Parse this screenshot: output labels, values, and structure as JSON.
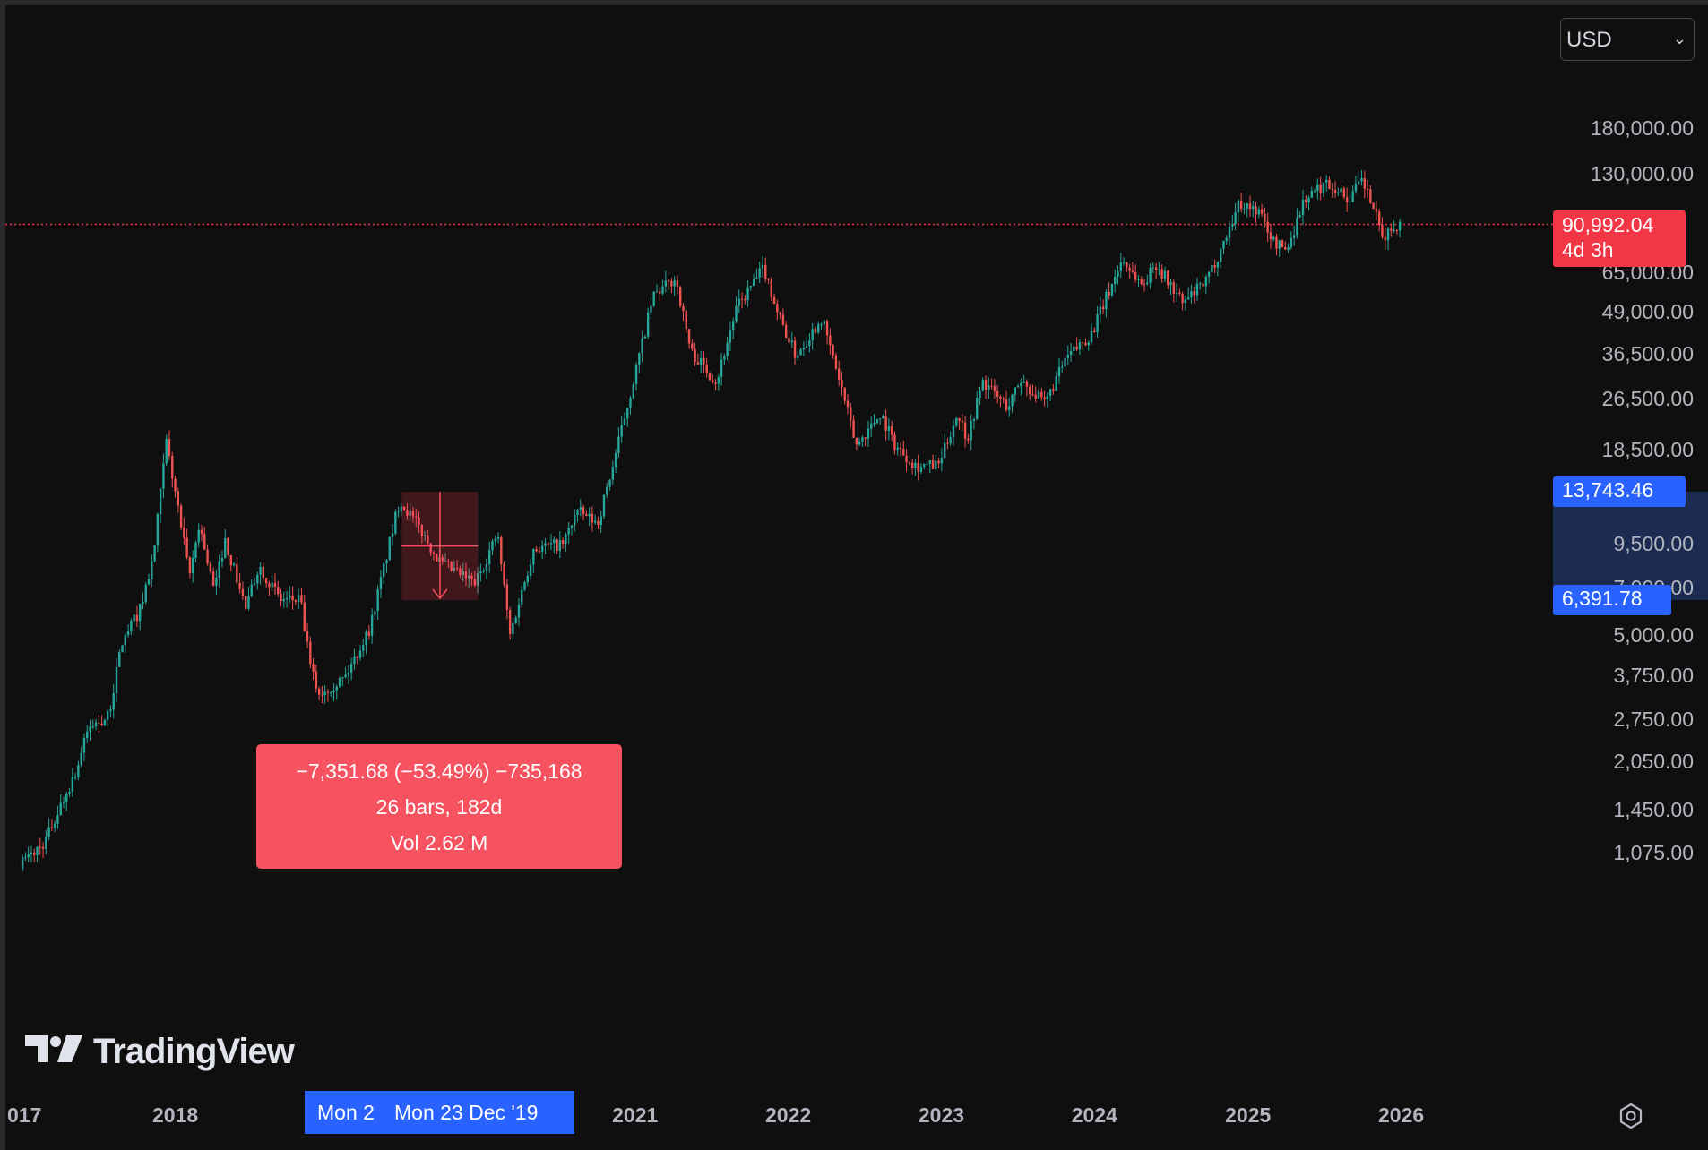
{
  "currency": {
    "selected": "USD"
  },
  "chart_data": {
    "type": "candlestick",
    "scale": "log",
    "y_ticks": [
      "180,000.00",
      "130,000.00",
      "65,000.00",
      "49,000.00",
      "36,500.00",
      "26,500.00",
      "18,500.00",
      "9,500.00",
      "7,000.00",
      "5,000.00",
      "3,750.00",
      "2,750.00",
      "2,050.00",
      "1,450.00",
      "1,075.00"
    ],
    "y_tick_values": [
      180000,
      130000,
      65000,
      49000,
      36500,
      26500,
      18500,
      9500,
      7000,
      5000,
      3750,
      2750,
      2050,
      1450,
      1075
    ],
    "x_ticks": [
      "017",
      "2018",
      "2021",
      "2022",
      "2023",
      "2024",
      "2025",
      "2026"
    ],
    "x_tick_dates": [
      "2017-01-01",
      "2018-01-01",
      "2021-01-01",
      "2022-01-01",
      "2023-01-01",
      "2024-01-01",
      "2025-01-01",
      "2026-01-01"
    ],
    "last_price": {
      "value": "90,992.04",
      "countdown": "4d 3h",
      "numeric": 90992.04
    },
    "range_high": {
      "label": "13,743.46",
      "value": 13743.46
    },
    "range_low": {
      "label": "6,391.78",
      "value": 6391.78
    },
    "measurement": {
      "change": "−7,351.68 (−53.49%) −735,168",
      "bars": "26 bars, 182d",
      "volume": "Vol 2.62 M"
    },
    "date_tags": [
      "Mon 2",
      "Mon 23 Dec '19"
    ],
    "anchors": [
      {
        "date": "2017-01-01",
        "price": 980
      },
      {
        "date": "2017-03-01",
        "price": 1150
      },
      {
        "date": "2017-05-15",
        "price": 1900
      },
      {
        "date": "2017-06-15",
        "price": 2600
      },
      {
        "date": "2017-08-01",
        "price": 2800
      },
      {
        "date": "2017-09-01",
        "price": 4700
      },
      {
        "date": "2017-10-15",
        "price": 6000
      },
      {
        "date": "2017-11-15",
        "price": 8500
      },
      {
        "date": "2017-12-17",
        "price": 19500
      },
      {
        "date": "2018-01-15",
        "price": 12000
      },
      {
        "date": "2018-02-10",
        "price": 7500
      },
      {
        "date": "2018-03-05",
        "price": 11000
      },
      {
        "date": "2018-04-10",
        "price": 6800
      },
      {
        "date": "2018-05-05",
        "price": 9800
      },
      {
        "date": "2018-06-25",
        "price": 6000
      },
      {
        "date": "2018-07-25",
        "price": 8200
      },
      {
        "date": "2018-09-15",
        "price": 6400
      },
      {
        "date": "2018-11-01",
        "price": 6400
      },
      {
        "date": "2018-11-25",
        "price": 4000
      },
      {
        "date": "2018-12-15",
        "price": 3300
      },
      {
        "date": "2019-02-15",
        "price": 3700
      },
      {
        "date": "2019-04-15",
        "price": 5200
      },
      {
        "date": "2019-06-26",
        "price": 13000
      },
      {
        "date": "2019-08-15",
        "price": 10500
      },
      {
        "date": "2019-10-01",
        "price": 8300
      },
      {
        "date": "2019-12-23",
        "price": 7200
      },
      {
        "date": "2020-02-14",
        "price": 10200
      },
      {
        "date": "2020-03-15",
        "price": 5000
      },
      {
        "date": "2020-05-10",
        "price": 9200
      },
      {
        "date": "2020-07-20",
        "price": 9500
      },
      {
        "date": "2020-08-20",
        "price": 12000
      },
      {
        "date": "2020-10-10",
        "price": 11000
      },
      {
        "date": "2020-11-15",
        "price": 16500
      },
      {
        "date": "2020-12-31",
        "price": 29000
      },
      {
        "date": "2021-02-20",
        "price": 55000
      },
      {
        "date": "2021-04-14",
        "price": 62000
      },
      {
        "date": "2021-05-20",
        "price": 37000
      },
      {
        "date": "2021-07-20",
        "price": 30000
      },
      {
        "date": "2021-09-05",
        "price": 50000
      },
      {
        "date": "2021-11-10",
        "price": 67000
      },
      {
        "date": "2021-12-15",
        "price": 48000
      },
      {
        "date": "2022-01-25",
        "price": 36000
      },
      {
        "date": "2022-03-28",
        "price": 47000
      },
      {
        "date": "2022-05-10",
        "price": 30000
      },
      {
        "date": "2022-06-18",
        "price": 19000
      },
      {
        "date": "2022-08-15",
        "price": 24000
      },
      {
        "date": "2022-09-20",
        "price": 19000
      },
      {
        "date": "2022-11-10",
        "price": 16500
      },
      {
        "date": "2022-12-31",
        "price": 16500
      },
      {
        "date": "2023-02-15",
        "price": 24000
      },
      {
        "date": "2023-03-10",
        "price": 20000
      },
      {
        "date": "2023-04-15",
        "price": 30000
      },
      {
        "date": "2023-06-15",
        "price": 25000
      },
      {
        "date": "2023-07-15",
        "price": 30500
      },
      {
        "date": "2023-09-10",
        "price": 25500
      },
      {
        "date": "2023-10-30",
        "price": 35000
      },
      {
        "date": "2023-12-31",
        "price": 42000
      },
      {
        "date": "2024-03-13",
        "price": 71000
      },
      {
        "date": "2024-05-01",
        "price": 59000
      },
      {
        "date": "2024-06-01",
        "price": 69000
      },
      {
        "date": "2024-08-05",
        "price": 52000
      },
      {
        "date": "2024-10-01",
        "price": 61000
      },
      {
        "date": "2024-11-10",
        "price": 80000
      },
      {
        "date": "2024-12-17",
        "price": 106000
      },
      {
        "date": "2025-02-01",
        "price": 100000
      },
      {
        "date": "2025-03-10",
        "price": 80000
      },
      {
        "date": "2025-04-10",
        "price": 76000
      },
      {
        "date": "2025-05-20",
        "price": 108000
      },
      {
        "date": "2025-07-14",
        "price": 122000
      },
      {
        "date": "2025-08-15",
        "price": 115000
      },
      {
        "date": "2025-09-01",
        "price": 108000
      },
      {
        "date": "2025-10-06",
        "price": 124000
      },
      {
        "date": "2025-11-05",
        "price": 100000
      },
      {
        "date": "2025-11-21",
        "price": 82000
      },
      {
        "date": "2025-12-28",
        "price": 90992
      }
    ]
  }
}
